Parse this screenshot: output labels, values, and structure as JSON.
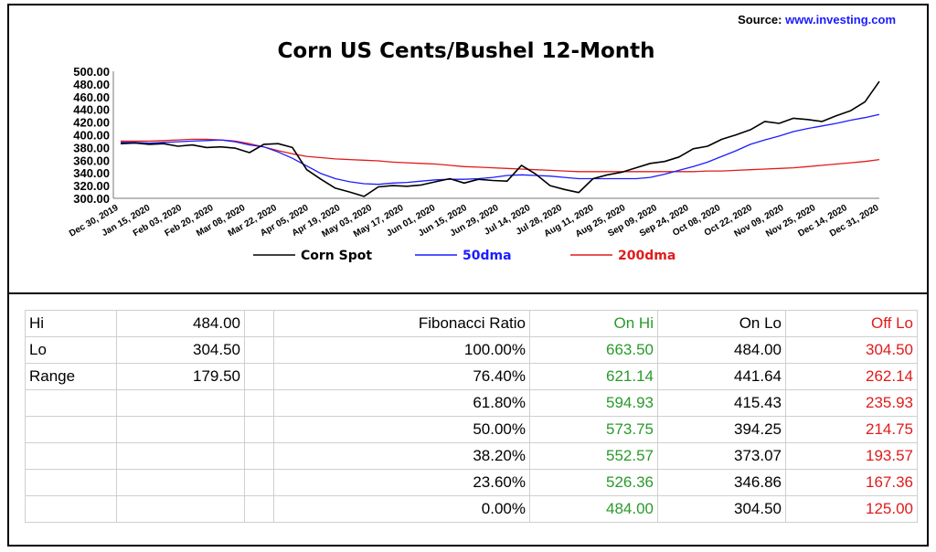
{
  "source": {
    "label": "Source:",
    "url": "www.investing.com"
  },
  "chart_data": {
    "type": "line",
    "title": "Corn US Cents/Bushel 12-Month",
    "xlabel": "",
    "ylabel": "",
    "ylim": [
      300,
      500
    ],
    "yticks": [
      "500.00",
      "480.00",
      "460.00",
      "440.00",
      "420.00",
      "400.00",
      "380.00",
      "360.00",
      "340.00",
      "320.00",
      "300.00"
    ],
    "x_tick_labels": [
      "Dec 30, 2019",
      "Jan 15, 2020",
      "Feb 03, 2020",
      "Feb 20, 2020",
      "Mar 08, 2020",
      "Mar 22, 2020",
      "Apr 05, 2020",
      "Apr 19, 2020",
      "May 03, 2020",
      "May 17, 2020",
      "Jun 01, 2020",
      "Jun 15, 2020",
      "Jun 29, 2020",
      "Jul 14, 2020",
      "Jul 28, 2020",
      "Aug 11, 2020",
      "Aug 25, 2020",
      "Sep 09, 2020",
      "Sep 24, 2020",
      "Oct 08, 2020",
      "Oct 22, 2020",
      "Nov 09, 2020",
      "Nov 25, 2020",
      "Dec 14, 2020",
      "Dec 31, 2020"
    ],
    "legend_position": "bottom",
    "series": [
      {
        "name": "Corn Spot",
        "color": "#000000",
        "values": [
          386,
          387,
          385,
          386,
          382,
          384,
          380,
          381,
          379,
          372,
          385,
          386,
          380,
          345,
          330,
          316,
          310,
          303,
          318,
          320,
          319,
          321,
          326,
          331,
          324,
          330,
          328,
          327,
          352,
          338,
          320,
          314,
          309,
          331,
          337,
          341,
          348,
          355,
          358,
          365,
          378,
          382,
          393,
          400,
          408,
          421,
          418,
          426,
          424,
          421,
          430,
          438,
          452,
          484
        ]
      },
      {
        "name": "50dma",
        "color": "#1c1cff",
        "values": [
          388,
          388,
          387,
          388,
          389,
          390,
          391,
          392,
          389,
          384,
          381,
          373,
          363,
          351,
          339,
          331,
          326,
          323,
          322,
          324,
          325,
          327,
          329,
          330,
          330,
          331,
          333,
          336,
          337,
          336,
          335,
          333,
          331,
          331,
          331,
          331,
          331,
          333,
          338,
          344,
          350,
          357,
          366,
          375,
          385,
          392,
          398,
          405,
          410,
          414,
          418,
          423,
          427,
          432
        ]
      },
      {
        "name": "200dma",
        "color": "#e01b1b",
        "values": [
          390,
          390,
          390,
          391,
          392,
          393,
          393,
          392,
          390,
          386,
          381,
          375,
          370,
          366,
          364,
          362,
          361,
          360,
          359,
          357,
          356,
          355,
          354,
          352,
          350,
          349,
          348,
          347,
          346,
          345,
          344,
          343,
          342,
          342,
          342,
          342,
          342,
          342,
          342,
          342,
          342,
          343,
          343,
          344,
          345,
          346,
          347,
          348,
          350,
          352,
          354,
          356,
          358,
          361
        ]
      }
    ]
  },
  "table": {
    "rows": [
      [
        "Hi",
        "484.00",
        "",
        "Fibonacci  Ratio",
        "On Hi",
        "On Lo",
        "Off Lo"
      ],
      [
        "Lo",
        "304.50",
        "",
        "100.00%",
        "663.50",
        "484.00",
        "304.50"
      ],
      [
        "Range",
        "179.50",
        "",
        "76.40%",
        "621.14",
        "441.64",
        "262.14"
      ],
      [
        "",
        "",
        "",
        "61.80%",
        "594.93",
        "415.43",
        "235.93"
      ],
      [
        "",
        "",
        "",
        "50.00%",
        "573.75",
        "394.25",
        "214.75"
      ],
      [
        "",
        "",
        "",
        "38.20%",
        "552.57",
        "373.07",
        "193.57"
      ],
      [
        "",
        "",
        "",
        "23.60%",
        "526.36",
        "346.86",
        "167.36"
      ],
      [
        "",
        "",
        "",
        "0.00%",
        "484.00",
        "304.50",
        "125.00"
      ]
    ]
  }
}
